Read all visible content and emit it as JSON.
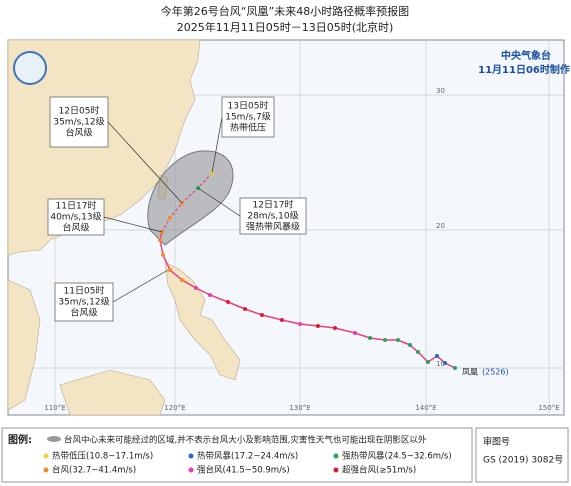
{
  "header": {
    "title": "今年第26号台风“凤凰”未来48小时路径概率预报图",
    "subtitle": "2025年11月11日05时－13日05时(北京时)"
  },
  "agency": {
    "name": "中央气象台",
    "issued": "11月11日06时制作"
  },
  "annotations": [
    {
      "time": "12日05时",
      "wind": "35m/s,12级",
      "level": "台风级"
    },
    {
      "time": "13日05时",
      "wind": "15m/s,7级",
      "level": "热带低压"
    },
    {
      "time": "11日17时",
      "wind": "40m/s,13级",
      "level": "台风级"
    },
    {
      "time": "12日17时",
      "wind": "28m/s,10级",
      "level": "强热带风暴级"
    },
    {
      "time": "11日05时",
      "wind": "35m/s,12级",
      "level": "台风级"
    }
  ],
  "typhoon": {
    "name": "凤凰",
    "code": "(2526)"
  },
  "lat_labels": [
    "30",
    "20",
    "10"
  ],
  "lon_labels": [
    "110°E",
    "120°E",
    "130°E",
    "140°E",
    "150°E"
  ],
  "legend": {
    "heading": "图例:",
    "cone_note": "台风中心未来可能经过的区域,并不表示台风大小及影响范围,灾害性天气也可能出现在阴影区以外",
    "items": [
      "热带低压(10.8~17.1m/s)",
      "热带风暴(17.2~24.4m/s)",
      "强热带风暴(24.5~32.6m/s)",
      "台风(32.7~41.4m/s)",
      "强台风(41.5~50.9m/s)",
      "超强台风(≥51m/s)"
    ]
  },
  "approval": {
    "heading": "审图号",
    "number": "GS (2019) 3082号"
  }
}
